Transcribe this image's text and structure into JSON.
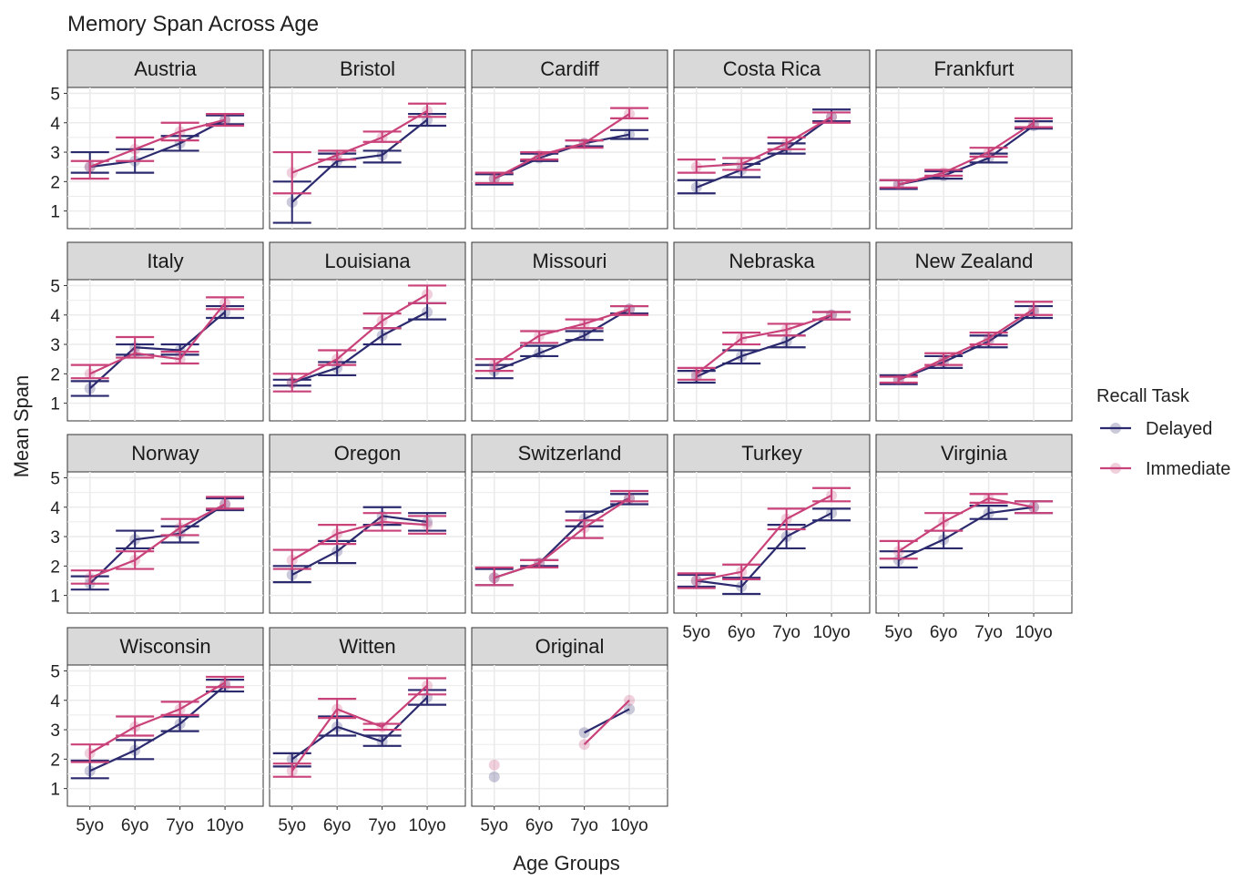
{
  "chart_data": {
    "type": "line",
    "title": "Memory Span Across Age",
    "xlabel": "Age Groups",
    "ylabel": "Mean Span",
    "categories": [
      "5yo",
      "6yo",
      "7yo",
      "10yo"
    ],
    "y_ticks": [
      1,
      2,
      3,
      4,
      5
    ],
    "ylim": [
      0.4,
      5.2
    ],
    "grid": true,
    "legend": {
      "title": "Recall Task",
      "position": "right",
      "entries": [
        {
          "name": "Delayed",
          "color": "#2c2a6e"
        },
        {
          "name": "Immediate",
          "color": "#c9427a"
        }
      ]
    },
    "colors": {
      "delayed": "#2c2a6e",
      "immediate": "#c9427a",
      "panel_bg": "#ffffff",
      "strip_bg": "#d9d9d9",
      "grid": "#ebebeb"
    },
    "panels": [
      {
        "name": "Austria",
        "delayed": {
          "values": [
            2.5,
            2.7,
            3.3,
            4.1
          ],
          "lower": [
            2.3,
            2.3,
            3.05,
            3.95
          ],
          "upper": [
            3.0,
            3.1,
            3.55,
            4.25
          ]
        },
        "immediate": {
          "values": [
            2.5,
            3.1,
            3.7,
            4.1
          ],
          "lower": [
            2.1,
            2.7,
            3.4,
            3.9
          ],
          "upper": [
            2.7,
            3.5,
            4.0,
            4.3
          ]
        }
      },
      {
        "name": "Bristol",
        "delayed": {
          "values": [
            1.3,
            2.7,
            2.9,
            4.1
          ],
          "lower": [
            0.6,
            2.5,
            2.65,
            3.9
          ],
          "upper": [
            2.0,
            2.95,
            3.05,
            4.3
          ]
        },
        "immediate": {
          "values": [
            2.3,
            2.9,
            3.5,
            4.4
          ],
          "lower": [
            1.6,
            2.75,
            3.35,
            4.2
          ],
          "upper": [
            3.0,
            3.05,
            3.7,
            4.65
          ]
        }
      },
      {
        "name": "Cardiff",
        "delayed": {
          "values": [
            2.1,
            2.8,
            3.3,
            3.6
          ],
          "lower": [
            1.9,
            2.7,
            3.2,
            3.45
          ],
          "upper": [
            2.25,
            2.95,
            3.4,
            3.75
          ]
        },
        "immediate": {
          "values": [
            2.1,
            2.9,
            3.3,
            4.3
          ],
          "lower": [
            1.95,
            2.75,
            3.15,
            4.15
          ],
          "upper": [
            2.3,
            3.0,
            3.4,
            4.5
          ]
        }
      },
      {
        "name": "Costa Rica",
        "delayed": {
          "values": [
            1.8,
            2.4,
            3.1,
            4.2
          ],
          "lower": [
            1.6,
            2.15,
            2.95,
            4.05
          ],
          "upper": [
            2.05,
            2.6,
            3.3,
            4.45
          ]
        },
        "immediate": {
          "values": [
            2.5,
            2.6,
            3.3,
            4.2
          ],
          "lower": [
            2.3,
            2.4,
            3.1,
            4.0
          ],
          "upper": [
            2.75,
            2.8,
            3.5,
            4.35
          ]
        }
      },
      {
        "name": "Frankfurt",
        "delayed": {
          "values": [
            1.9,
            2.2,
            2.8,
            3.9
          ],
          "lower": [
            1.75,
            2.1,
            2.65,
            3.8
          ],
          "upper": [
            2.05,
            2.35,
            2.95,
            4.05
          ]
        },
        "immediate": {
          "values": [
            1.9,
            2.3,
            3.0,
            4.0
          ],
          "lower": [
            1.8,
            2.2,
            2.85,
            3.85
          ],
          "upper": [
            2.05,
            2.4,
            3.15,
            4.15
          ]
        }
      },
      {
        "name": "Italy",
        "delayed": {
          "values": [
            1.5,
            2.9,
            2.8,
            4.1
          ],
          "lower": [
            1.25,
            2.65,
            2.65,
            3.9
          ],
          "upper": [
            1.75,
            3.0,
            3.0,
            4.3
          ]
        },
        "immediate": {
          "values": [
            2.0,
            2.7,
            2.5,
            4.4
          ],
          "lower": [
            1.85,
            2.55,
            2.35,
            4.2
          ],
          "upper": [
            2.3,
            3.25,
            2.75,
            4.6
          ]
        }
      },
      {
        "name": "Louisiana",
        "delayed": {
          "values": [
            1.7,
            2.2,
            3.3,
            4.1
          ],
          "lower": [
            1.6,
            1.95,
            3.0,
            3.85
          ],
          "upper": [
            1.8,
            2.4,
            3.55,
            4.4
          ]
        },
        "immediate": {
          "values": [
            1.7,
            2.5,
            3.8,
            4.7
          ],
          "lower": [
            1.4,
            2.3,
            3.55,
            4.4
          ],
          "upper": [
            2.0,
            2.8,
            4.05,
            5.0
          ]
        }
      },
      {
        "name": "Missouri",
        "delayed": {
          "values": [
            2.1,
            2.7,
            3.3,
            4.2
          ],
          "lower": [
            1.85,
            2.6,
            3.15,
            4.05
          ],
          "upper": [
            2.3,
            2.95,
            3.45,
            4.3
          ]
        },
        "immediate": {
          "values": [
            2.3,
            3.3,
            3.7,
            4.2
          ],
          "lower": [
            2.1,
            3.05,
            3.55,
            4.0
          ],
          "upper": [
            2.5,
            3.45,
            3.85,
            4.3
          ]
        }
      },
      {
        "name": "Nebraska",
        "delayed": {
          "values": [
            1.9,
            2.6,
            3.1,
            4.0
          ],
          "lower": [
            1.7,
            2.35,
            2.9,
            3.85
          ],
          "upper": [
            2.1,
            2.8,
            3.3,
            4.1
          ]
        },
        "immediate": {
          "values": [
            2.0,
            3.2,
            3.5,
            4.0
          ],
          "lower": [
            1.8,
            3.0,
            3.3,
            3.85
          ],
          "upper": [
            2.2,
            3.4,
            3.7,
            4.1
          ]
        }
      },
      {
        "name": "New Zealand",
        "delayed": {
          "values": [
            1.8,
            2.4,
            3.1,
            4.1
          ],
          "lower": [
            1.65,
            2.2,
            2.9,
            3.9
          ],
          "upper": [
            1.95,
            2.6,
            3.3,
            4.3
          ]
        },
        "immediate": {
          "values": [
            1.8,
            2.5,
            3.2,
            4.2
          ],
          "lower": [
            1.7,
            2.3,
            3.0,
            4.0
          ],
          "upper": [
            1.9,
            2.7,
            3.4,
            4.45
          ]
        }
      },
      {
        "name": "Norway",
        "delayed": {
          "values": [
            1.4,
            2.9,
            3.1,
            4.1
          ],
          "lower": [
            1.2,
            2.6,
            2.8,
            3.9
          ],
          "upper": [
            1.65,
            3.2,
            3.35,
            4.3
          ]
        },
        "immediate": {
          "values": [
            1.6,
            2.2,
            3.3,
            4.1
          ],
          "lower": [
            1.4,
            1.9,
            3.05,
            3.95
          ],
          "upper": [
            1.85,
            2.5,
            3.6,
            4.35
          ]
        }
      },
      {
        "name": "Oregon",
        "delayed": {
          "values": [
            1.7,
            2.5,
            3.7,
            3.5
          ],
          "lower": [
            1.45,
            2.1,
            3.4,
            3.2
          ],
          "upper": [
            2.0,
            2.85,
            4.0,
            3.8
          ]
        },
        "immediate": {
          "values": [
            2.2,
            3.1,
            3.5,
            3.4
          ],
          "lower": [
            1.9,
            2.75,
            3.2,
            3.1
          ],
          "upper": [
            2.55,
            3.4,
            3.8,
            3.7
          ]
        }
      },
      {
        "name": "Switzerland",
        "delayed": {
          "values": [
            1.6,
            2.1,
            3.6,
            4.3
          ],
          "lower": [
            1.35,
            2.0,
            3.35,
            4.1
          ],
          "upper": [
            1.9,
            2.2,
            3.85,
            4.45
          ]
        },
        "immediate": {
          "values": [
            1.6,
            2.1,
            3.3,
            4.3
          ],
          "lower": [
            1.35,
            1.95,
            2.95,
            4.2
          ],
          "upper": [
            1.95,
            2.2,
            3.55,
            4.55
          ]
        }
      },
      {
        "name": "Turkey",
        "delayed": {
          "values": [
            1.5,
            1.3,
            3.0,
            3.8
          ],
          "lower": [
            1.3,
            1.05,
            2.6,
            3.55
          ],
          "upper": [
            1.7,
            1.6,
            3.4,
            3.95
          ]
        },
        "immediate": {
          "values": [
            1.5,
            1.8,
            3.6,
            4.4
          ],
          "lower": [
            1.25,
            1.55,
            3.25,
            4.2
          ],
          "upper": [
            1.75,
            2.05,
            3.95,
            4.65
          ]
        }
      },
      {
        "name": "Virginia",
        "delayed": {
          "values": [
            2.2,
            2.9,
            3.8,
            4.0
          ],
          "lower": [
            1.95,
            2.6,
            3.6,
            3.8
          ],
          "upper": [
            2.5,
            3.2,
            4.05,
            4.2
          ]
        },
        "immediate": {
          "values": [
            2.5,
            3.5,
            4.3,
            4.0
          ],
          "lower": [
            2.25,
            3.2,
            4.15,
            3.8
          ],
          "upper": [
            2.85,
            3.8,
            4.45,
            4.2
          ]
        }
      },
      {
        "name": "Wisconsin",
        "delayed": {
          "values": [
            1.6,
            2.3,
            3.2,
            4.5
          ],
          "lower": [
            1.35,
            2.0,
            2.95,
            4.3
          ],
          "upper": [
            1.95,
            2.65,
            3.45,
            4.7
          ]
        },
        "immediate": {
          "values": [
            2.2,
            3.1,
            3.7,
            4.6
          ],
          "lower": [
            1.9,
            2.8,
            3.5,
            4.45
          ],
          "upper": [
            2.5,
            3.45,
            3.95,
            4.8
          ]
        }
      },
      {
        "name": "Witten",
        "delayed": {
          "values": [
            2.0,
            3.1,
            2.6,
            4.1
          ],
          "lower": [
            1.75,
            2.8,
            2.45,
            3.85
          ],
          "upper": [
            2.2,
            3.45,
            2.8,
            4.35
          ]
        },
        "immediate": {
          "values": [
            1.6,
            3.7,
            3.1,
            4.5
          ],
          "lower": [
            1.4,
            3.4,
            3.0,
            4.2
          ],
          "upper": [
            1.85,
            4.05,
            3.2,
            4.75
          ]
        }
      },
      {
        "name": "Original",
        "delayed": {
          "values": [
            1.4,
            null,
            2.9,
            3.7
          ]
        },
        "immediate": {
          "values": [
            1.8,
            null,
            2.5,
            4.0
          ]
        }
      }
    ]
  }
}
